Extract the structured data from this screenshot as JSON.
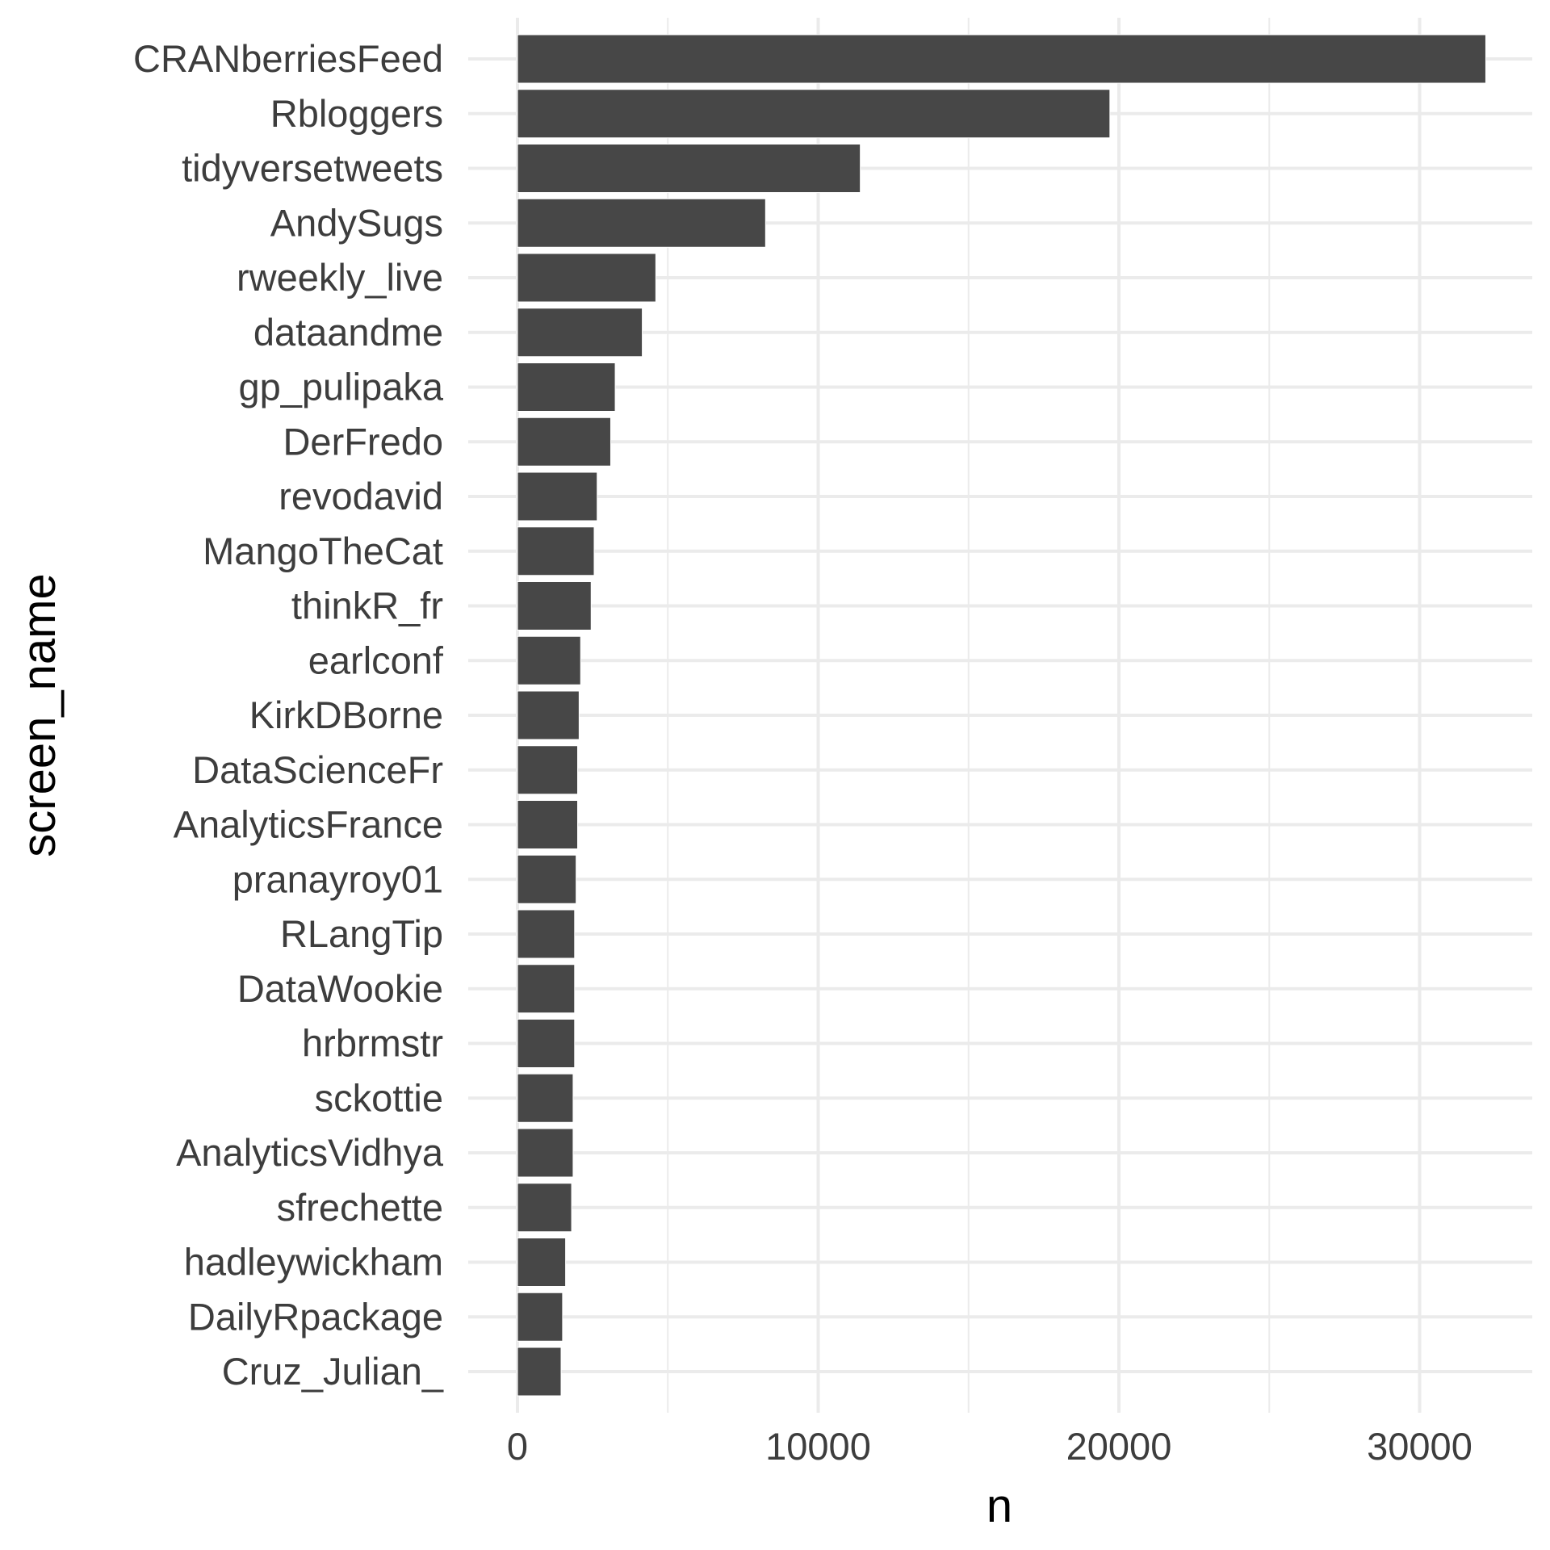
{
  "chart_data": {
    "type": "bar",
    "orientation": "horizontal",
    "title": "",
    "xlabel": "n",
    "ylabel": "screen_name",
    "xlim": [
      0,
      35000
    ],
    "x_ticks": [
      0,
      10000,
      20000,
      30000
    ],
    "x_tick_labels": [
      "0",
      "10000",
      "20000",
      "30000"
    ],
    "grid": true,
    "bar_color": "#474747",
    "categories": [
      "CRANberriesFeed",
      "Rbloggers",
      "tidyversetweets",
      "AndySugs",
      "rweekly_live",
      "dataandme",
      "gp_pulipaka",
      "DerFredo",
      "revodavid",
      "MangoTheCat",
      "thinkR_fr",
      "earlconf",
      "KirkDBorne",
      "DataScienceFr",
      "AnalyticsFrance",
      "pranayroy01",
      "RLangTip",
      "DataWookie",
      "hrbrmstr",
      "sckottie",
      "AnalyticsVidhya",
      "sfrechette",
      "hadleywickham",
      "DailyRpackage",
      "Cruz_Julian_"
    ],
    "values": [
      32200,
      19700,
      11400,
      8250,
      4600,
      4150,
      3250,
      3100,
      2650,
      2550,
      2450,
      2100,
      2050,
      2000,
      2000,
      1950,
      1900,
      1900,
      1900,
      1850,
      1850,
      1800,
      1600,
      1500,
      1450
    ]
  }
}
